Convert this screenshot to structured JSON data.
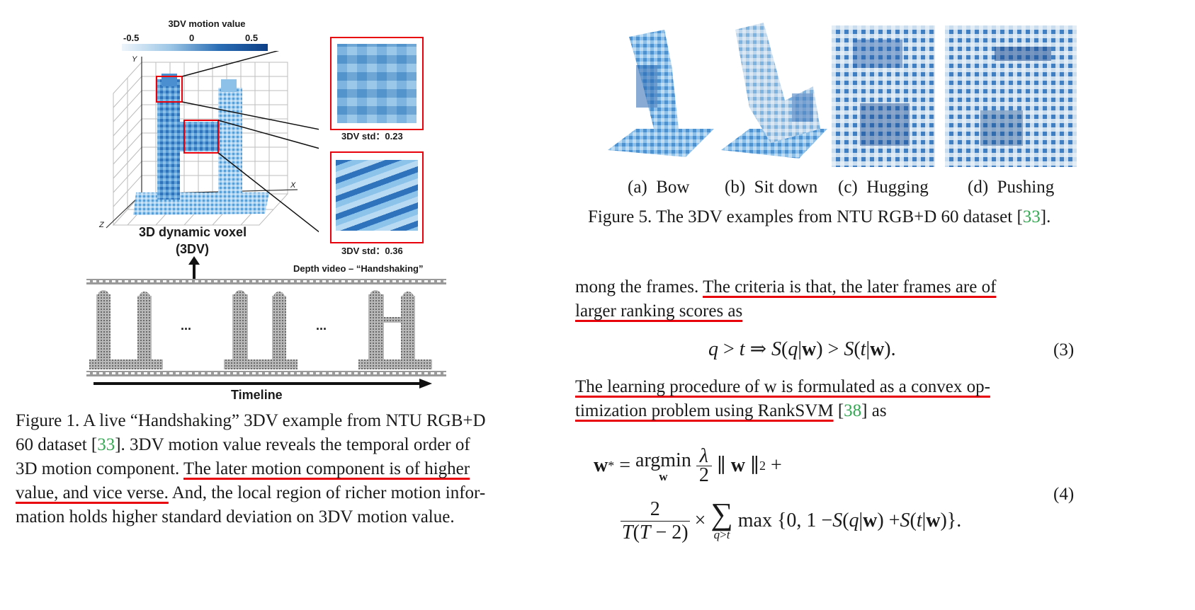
{
  "figure1": {
    "colorbar_title": "3DV motion value",
    "colorbar_ticks": [
      "-0.5",
      "0",
      "0.5"
    ],
    "axis_y": "Y",
    "axis_x": "X",
    "axis_z": "Z",
    "voxel_label_line1": "3D dynamic voxel",
    "voxel_label_line2": "(3DV)",
    "zoom_top_std": "3DV std：0.23",
    "zoom_bottom_std": "3DV std：0.36",
    "video_title": "Depth video – “Handshaking”",
    "ellipsis": "...",
    "timeline_label": "Timeline",
    "caption_lines": [
      "Figure 1. A live “Handshaking” 3DV example from NTU RGB+D",
      "60 dataset [",
      "33",
      "].  3DV motion value reveals the temporal order of",
      "3D motion component.  ",
      "The later motion component is of higher",
      "value, and vice verse.",
      " And, the local region of richer motion infor-",
      "mation holds higher standard deviation on 3DV motion value."
    ]
  },
  "figure5": {
    "subfigs": [
      {
        "letter": "(a)",
        "label": "Bow"
      },
      {
        "letter": "(b)",
        "label": "Sit down"
      },
      {
        "letter": "(c)",
        "label": "Hugging"
      },
      {
        "letter": "(d)",
        "label": "Pushing"
      }
    ],
    "caption_prefix": "Figure 5. The 3DV examples from NTU RGB+D 60 dataset [",
    "caption_cite": "33",
    "caption_suffix": "]."
  },
  "body": {
    "line1_plain": "mong the frames. ",
    "line1_ul": "The criteria is that, the later frames are of",
    "line2_ul": "larger ranking scores as",
    "eq3_number": "(3)",
    "line3_ul": "The learning procedure of w is formulated as a convex op-",
    "line4_ul": "timization problem using RankSVM",
    "line4_cite_open": " [",
    "line4_cite": "38",
    "line4_rest": "] as",
    "eq4_number": "(4)"
  },
  "colors": {
    "underline": "#e8000b",
    "cite": "#34a853",
    "zoom_box": "#e8000b",
    "voxel_light": "#cfe3f4",
    "voxel_dark": "#1f5fa8"
  }
}
